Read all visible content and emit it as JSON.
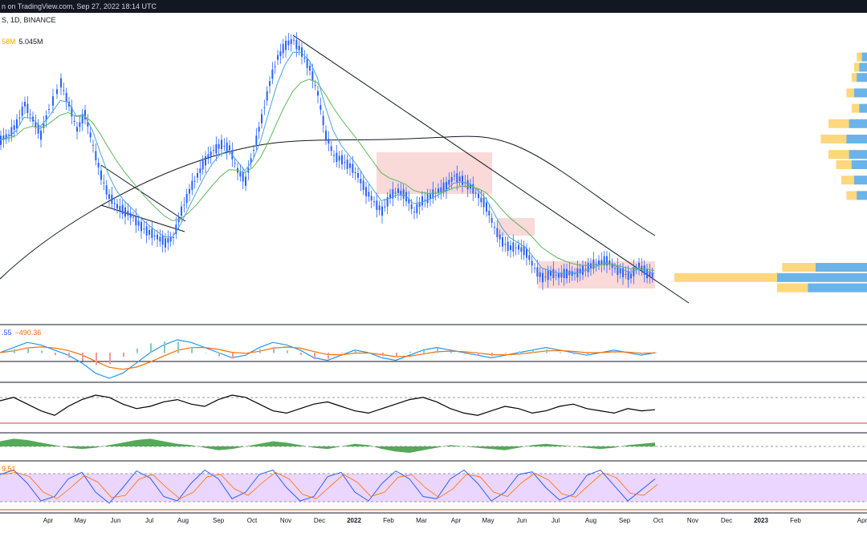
{
  "header": {
    "text": "n on TradingView.com, Sep 27, 2022 18:14 UTC"
  },
  "symbol_line": "S, 1D, BINANCE",
  "volume_labels": {
    "a": "58M",
    "b": "5.045M"
  },
  "macd_labels": {
    "a": ".55",
    "b": "−490.36"
  },
  "stoch_label": "9.51",
  "colors": {
    "candle": "#2962ff",
    "ema_fast": "#4aa3df",
    "ema_slow": "#5cb85c",
    "ma200": "#131722",
    "trend": "#131722",
    "range_fill": "#f8c9c9",
    "vp_up": "#63b2ef",
    "vp_down": "#ffd36e",
    "macd": "#2196f3",
    "signal": "#ff6d00",
    "rsi": "#000000",
    "ao": "#43a047",
    "stoch_band": "#e6ccff"
  },
  "chart_data": {
    "type": "line",
    "title": "",
    "x_ticks": [
      {
        "label": "Apr",
        "year": false
      },
      {
        "label": "May",
        "year": false
      },
      {
        "label": "Jun",
        "year": false
      },
      {
        "label": "Jul",
        "year": false
      },
      {
        "label": "Aug",
        "year": false
      },
      {
        "label": "Sep",
        "year": false
      },
      {
        "label": "Oct",
        "year": false
      },
      {
        "label": "Nov",
        "year": false
      },
      {
        "label": "Dec",
        "year": false
      },
      {
        "label": "2022",
        "year": true
      },
      {
        "label": "Feb",
        "year": false
      },
      {
        "label": "Mar",
        "year": false
      },
      {
        "label": "Apr",
        "year": false
      },
      {
        "label": "May",
        "year": false
      },
      {
        "label": "Jun",
        "year": false
      },
      {
        "label": "Jul",
        "year": false
      },
      {
        "label": "Aug",
        "year": false
      },
      {
        "label": "Sep",
        "year": false
      },
      {
        "label": "Oct",
        "year": false
      },
      {
        "label": "Nov",
        "year": false
      },
      {
        "label": "Dec",
        "year": false
      },
      {
        "label": "2023",
        "year": true
      },
      {
        "label": "Feb",
        "year": false
      },
      {
        "label": "Apr",
        "year": false
      }
    ],
    "price_path": [
      [
        0,
        58
      ],
      [
        10,
        60
      ],
      [
        20,
        64
      ],
      [
        30,
        72
      ],
      [
        40,
        66
      ],
      [
        50,
        60
      ],
      [
        60,
        70
      ],
      [
        75,
        80
      ],
      [
        85,
        72
      ],
      [
        95,
        62
      ],
      [
        105,
        68
      ],
      [
        115,
        56
      ],
      [
        125,
        44
      ],
      [
        135,
        36
      ],
      [
        145,
        32
      ],
      [
        155,
        30
      ],
      [
        165,
        28
      ],
      [
        175,
        24
      ],
      [
        185,
        22
      ],
      [
        195,
        20
      ],
      [
        205,
        18
      ],
      [
        215,
        20
      ],
      [
        225,
        30
      ],
      [
        235,
        38
      ],
      [
        245,
        44
      ],
      [
        255,
        50
      ],
      [
        265,
        54
      ],
      [
        275,
        56
      ],
      [
        285,
        55
      ],
      [
        295,
        46
      ],
      [
        305,
        42
      ],
      [
        315,
        54
      ],
      [
        325,
        66
      ],
      [
        335,
        80
      ],
      [
        345,
        90
      ],
      [
        355,
        95
      ],
      [
        365,
        97
      ],
      [
        375,
        92
      ],
      [
        385,
        86
      ],
      [
        395,
        76
      ],
      [
        405,
        60
      ],
      [
        415,
        52
      ],
      [
        425,
        50
      ],
      [
        435,
        48
      ],
      [
        445,
        44
      ],
      [
        455,
        38
      ],
      [
        465,
        34
      ],
      [
        475,
        30
      ],
      [
        485,
        36
      ],
      [
        495,
        38
      ],
      [
        505,
        36
      ],
      [
        515,
        30
      ],
      [
        525,
        34
      ],
      [
        535,
        36
      ],
      [
        545,
        38
      ],
      [
        555,
        40
      ],
      [
        565,
        44
      ],
      [
        575,
        42
      ],
      [
        585,
        40
      ],
      [
        595,
        36
      ],
      [
        605,
        32
      ],
      [
        615,
        24
      ],
      [
        625,
        18
      ],
      [
        635,
        16
      ],
      [
        645,
        16
      ],
      [
        655,
        14
      ],
      [
        665,
        8
      ],
      [
        675,
        4
      ],
      [
        685,
        6
      ],
      [
        695,
        5
      ],
      [
        705,
        6
      ],
      [
        715,
        6
      ],
      [
        725,
        7
      ],
      [
        735,
        9
      ],
      [
        745,
        10
      ],
      [
        755,
        11
      ],
      [
        765,
        8
      ],
      [
        775,
        6
      ],
      [
        785,
        5
      ],
      [
        795,
        9
      ],
      [
        805,
        6
      ],
      [
        815,
        5
      ]
    ],
    "volume_profile": [
      {
        "price": 92,
        "up": 4,
        "down": 8
      },
      {
        "price": 88,
        "up": 6,
        "down": 10
      },
      {
        "price": 84,
        "up": 8,
        "down": 12
      },
      {
        "price": 78,
        "up": 10,
        "down": 16
      },
      {
        "price": 72,
        "up": 6,
        "down": 12
      },
      {
        "price": 66,
        "up": 14,
        "down": 30
      },
      {
        "price": 60,
        "up": 16,
        "down": 36
      },
      {
        "price": 54,
        "up": 14,
        "down": 30
      },
      {
        "price": 50,
        "up": 12,
        "down": 24
      },
      {
        "price": 44,
        "up": 10,
        "down": 20
      },
      {
        "price": 38,
        "up": 8,
        "down": 16
      },
      {
        "price": 10,
        "up": 40,
        "down": 66
      },
      {
        "price": 6,
        "up": 70,
        "down": 150
      },
      {
        "price": 2,
        "up": 46,
        "down": 70
      }
    ],
    "macd": [
      0,
      2,
      4,
      3,
      1,
      -1,
      -4,
      -8,
      -10,
      -8,
      -4,
      0,
      3,
      5,
      4,
      2,
      0,
      -2,
      -1,
      2,
      4,
      3,
      1,
      -2,
      -3,
      -1,
      1,
      0,
      -2,
      -3,
      -1,
      1,
      2,
      1,
      0,
      -1,
      -2,
      -1,
      0,
      1,
      2,
      1,
      0,
      -1,
      0,
      1,
      0,
      -1,
      0
    ],
    "rsi": [
      55,
      58,
      52,
      46,
      42,
      50,
      56,
      60,
      58,
      52,
      48,
      50,
      54,
      56,
      52,
      50,
      56,
      60,
      58,
      52,
      46,
      44,
      48,
      52,
      54,
      50,
      46,
      44,
      48,
      52,
      56,
      58,
      54,
      48,
      44,
      42,
      46,
      50,
      48,
      44,
      46,
      50,
      52,
      48,
      46,
      44,
      48,
      46,
      47
    ],
    "ao": [
      4,
      6,
      5,
      3,
      1,
      -1,
      -2,
      -1,
      1,
      3,
      5,
      6,
      4,
      2,
      1,
      -1,
      -3,
      -2,
      0,
      2,
      4,
      3,
      1,
      -1,
      -2,
      0,
      2,
      1,
      -2,
      -4,
      -5,
      -3,
      -1,
      1,
      0,
      -1,
      -2,
      -3,
      -1,
      1,
      2,
      1,
      0,
      -1,
      -2,
      -1,
      1,
      2,
      3
    ],
    "stoch": [
      80,
      90,
      60,
      20,
      30,
      70,
      85,
      40,
      15,
      50,
      88,
      72,
      30,
      20,
      60,
      90,
      70,
      25,
      40,
      80,
      90,
      50,
      20,
      30,
      75,
      85,
      40,
      20,
      60,
      88,
      70,
      30,
      25,
      70,
      90,
      60,
      20,
      40,
      80,
      86,
      50,
      22,
      35,
      78,
      90,
      55,
      20,
      45,
      70
    ]
  }
}
